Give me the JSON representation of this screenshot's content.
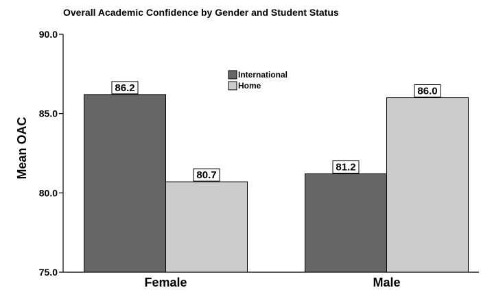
{
  "chart_data": {
    "type": "bar",
    "title": "Overall Academic Confidence by Gender and Student Status",
    "xlabel": "",
    "ylabel": "Mean OAC",
    "categories": [
      "Female",
      "Male"
    ],
    "series": [
      {
        "name": "International",
        "values": [
          86.2,
          81.2
        ],
        "labels": [
          "86.2",
          "81.2"
        ],
        "color": "#666666"
      },
      {
        "name": "Home",
        "values": [
          80.7,
          86.0
        ],
        "labels": [
          "80.7",
          "86.0"
        ],
        "color": "#cccccc"
      }
    ],
    "ylim": [
      75,
      90
    ],
    "yticks": [
      75.0,
      80.0,
      85.0,
      90.0
    ],
    "ytick_labels": [
      "75.0",
      "80.0",
      "85.0",
      "90.0"
    ],
    "grid": false,
    "legend_position": "top-center"
  }
}
